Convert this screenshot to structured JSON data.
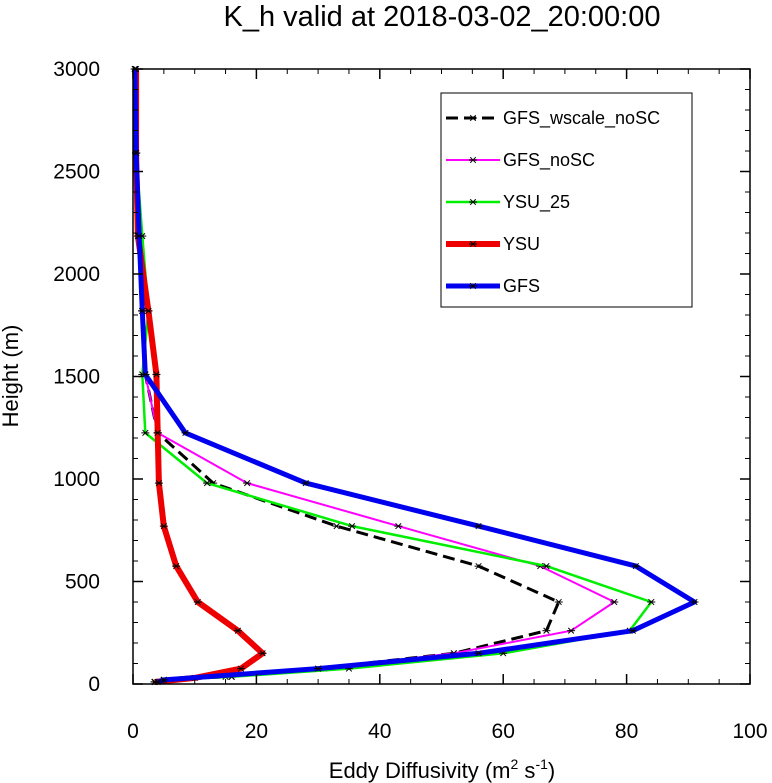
{
  "chart_data": {
    "type": "line",
    "title": "K_h valid at 2018-03-02_20:00:00",
    "xlabel": "Eddy Diffusivity (m",
    "xlabel_sup1": "2",
    "xlabel_mid": " s",
    "xlabel_sup2": "-1",
    "xlabel_end": ")",
    "ylabel": "Height (m)",
    "xlim": [
      0,
      100
    ],
    "ylim": [
      0,
      3000
    ],
    "x_ticks": [
      "0",
      "20",
      "40",
      "60",
      "80",
      "100"
    ],
    "y_ticks": [
      "0",
      "500",
      "1000",
      "1500",
      "2000",
      "2500",
      "3000"
    ],
    "legend_placement": "top-right",
    "series": [
      {
        "name": "GFS_wscale_noSC",
        "color": "#000000",
        "dash": true,
        "width": 3,
        "points": [
          [
            3.5,
            10
          ],
          [
            5,
            20
          ],
          [
            15,
            35
          ],
          [
            30,
            75
          ],
          [
            52,
            150
          ],
          [
            67,
            260
          ],
          [
            69,
            400
          ],
          [
            56,
            575
          ],
          [
            33,
            770
          ],
          [
            13,
            980
          ],
          [
            4,
            1225
          ],
          [
            2,
            1510
          ],
          [
            1.5,
            1820
          ],
          [
            1,
            2185
          ],
          [
            0.5,
            2590
          ],
          [
            0.3,
            3000
          ]
        ]
      },
      {
        "name": "GFS_noSC",
        "color": "#ff00ff",
        "dash": false,
        "width": 2,
        "points": [
          [
            3.5,
            10
          ],
          [
            5,
            20
          ],
          [
            16,
            35
          ],
          [
            31,
            75
          ],
          [
            52,
            150
          ],
          [
            71,
            260
          ],
          [
            78,
            400
          ],
          [
            66,
            575
          ],
          [
            43,
            770
          ],
          [
            18.5,
            980
          ],
          [
            4,
            1225
          ],
          [
            2,
            1510
          ],
          [
            1.5,
            1820
          ],
          [
            1,
            2185
          ],
          [
            0.5,
            2590
          ],
          [
            0.3,
            3000
          ]
        ]
      },
      {
        "name": "YSU_25",
        "color": "#00ee00",
        "dash": false,
        "width": 2.5,
        "points": [
          [
            3.5,
            10
          ],
          [
            5,
            20
          ],
          [
            16,
            35
          ],
          [
            35,
            75
          ],
          [
            60,
            150
          ],
          [
            80.5,
            260
          ],
          [
            84,
            400
          ],
          [
            67,
            575
          ],
          [
            35.5,
            770
          ],
          [
            12,
            980
          ],
          [
            2,
            1225
          ],
          [
            1.5,
            1510
          ],
          [
            2.5,
            1820
          ],
          [
            1.5,
            2185
          ],
          [
            0.5,
            2590
          ],
          [
            0.3,
            3000
          ]
        ]
      },
      {
        "name": "YSU",
        "color": "#ee0000",
        "dash": false,
        "width": 6,
        "points": [
          [
            3.5,
            10
          ],
          [
            10,
            30
          ],
          [
            17.5,
            75
          ],
          [
            21,
            150
          ],
          [
            17,
            260
          ],
          [
            10.5,
            400
          ],
          [
            7,
            575
          ],
          [
            5,
            770
          ],
          [
            4.2,
            980
          ],
          [
            4,
            1225
          ],
          [
            3.8,
            1510
          ],
          [
            2.5,
            1820
          ],
          [
            0.8,
            2185
          ],
          [
            0.5,
            2590
          ],
          [
            0.5,
            3000
          ]
        ]
      },
      {
        "name": "GFS",
        "color": "#0000ee",
        "dash": false,
        "width": 5,
        "points": [
          [
            4,
            10
          ],
          [
            5,
            20
          ],
          [
            30,
            75
          ],
          [
            56,
            150
          ],
          [
            81,
            260
          ],
          [
            91,
            400
          ],
          [
            81.5,
            575
          ],
          [
            56,
            770
          ],
          [
            28,
            980
          ],
          [
            8.5,
            1225
          ],
          [
            2,
            1510
          ],
          [
            1.5,
            1820
          ],
          [
            1,
            2185
          ],
          [
            0.5,
            2590
          ],
          [
            0.3,
            3000
          ]
        ]
      }
    ]
  }
}
